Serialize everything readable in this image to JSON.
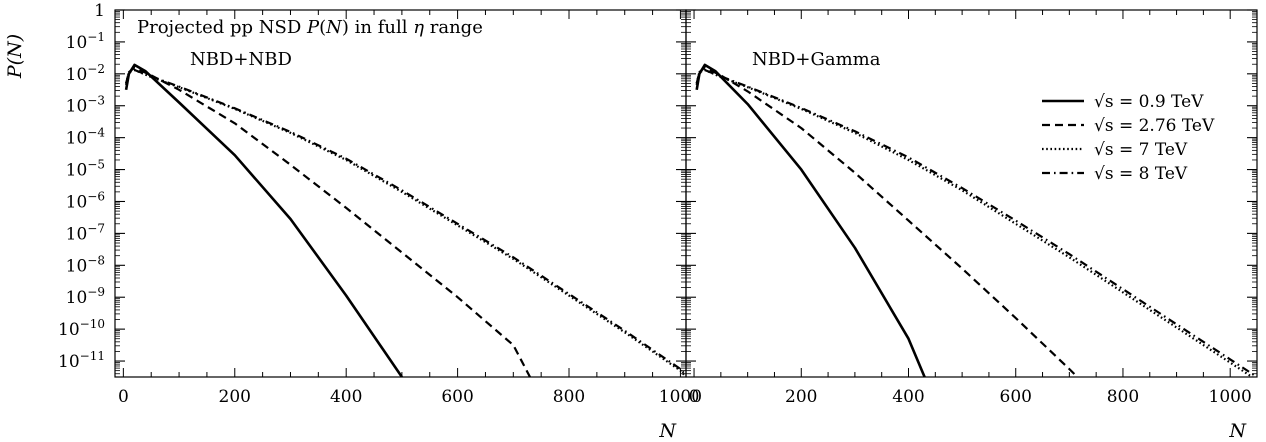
{
  "chart_data": [
    {
      "type": "line",
      "panel": "left",
      "title": "",
      "annotations": [
        "Projected pp NSD P(N) in full η range",
        "NBD+NBD"
      ],
      "xlabel": "N",
      "ylabel": "P(N)",
      "xlim": [
        -15,
        1010
      ],
      "ylim_log10": [
        -11.5,
        0
      ],
      "yscale": "log",
      "x_ticks": [
        "0",
        "200",
        "400",
        "600",
        "800",
        "1000"
      ],
      "y_ticks": [
        "1",
        "10^-1",
        "10^-2",
        "10^-3",
        "10^-4",
        "10^-5",
        "10^-6",
        "10^-7",
        "10^-8",
        "10^-9",
        "10^-10",
        "10^-11"
      ],
      "legend": "none",
      "series": [
        {
          "legend_label": "√s = 0.9 TeV",
          "style": "solid",
          "points": [
            [
              5,
              -2.5
            ],
            [
              10,
              -2.0
            ],
            [
              20,
              -1.72
            ],
            [
              40,
              -1.92
            ],
            [
              100,
              -2.9
            ],
            [
              200,
              -4.55
            ],
            [
              300,
              -6.55
            ],
            [
              400,
              -8.95
            ],
            [
              500,
              -11.5
            ]
          ]
        },
        {
          "legend_label": "√s = 2.76 TeV",
          "style": "dashed",
          "points": [
            [
              5,
              -2.35
            ],
            [
              10,
              -1.95
            ],
            [
              20,
              -1.8
            ],
            [
              50,
              -2.05
            ],
            [
              100,
              -2.5
            ],
            [
              200,
              -3.55
            ],
            [
              300,
              -4.85
            ],
            [
              400,
              -6.2
            ],
            [
              500,
              -7.6
            ],
            [
              600,
              -9.0
            ],
            [
              700,
              -10.5
            ],
            [
              730,
              -11.5
            ]
          ]
        },
        {
          "legend_label": "√s = 7 TeV",
          "style": "dotted",
          "points": [
            [
              5,
              -2.3
            ],
            [
              10,
              -1.95
            ],
            [
              20,
              -1.88
            ],
            [
              50,
              -2.1
            ],
            [
              100,
              -2.42
            ],
            [
              200,
              -3.1
            ],
            [
              300,
              -3.85
            ],
            [
              400,
              -4.7
            ],
            [
              500,
              -5.7
            ],
            [
              600,
              -6.75
            ],
            [
              700,
              -7.8
            ],
            [
              800,
              -8.95
            ],
            [
              900,
              -10.1
            ],
            [
              1000,
              -11.3
            ],
            [
              1010,
              -11.5
            ]
          ]
        },
        {
          "legend_label": "√s = 8 TeV",
          "style": "dashdot",
          "points": [
            [
              5,
              -2.3
            ],
            [
              10,
              -1.95
            ],
            [
              20,
              -1.88
            ],
            [
              50,
              -2.08
            ],
            [
              100,
              -2.4
            ],
            [
              200,
              -3.08
            ],
            [
              300,
              -3.82
            ],
            [
              400,
              -4.66
            ],
            [
              500,
              -5.65
            ],
            [
              600,
              -6.7
            ],
            [
              700,
              -7.75
            ],
            [
              800,
              -8.9
            ],
            [
              900,
              -10.05
            ],
            [
              1000,
              -11.25
            ],
            [
              1010,
              -11.45
            ]
          ]
        }
      ]
    },
    {
      "type": "line",
      "panel": "right",
      "title": "",
      "annotations": [
        "NBD+Gamma"
      ],
      "xlabel": "N",
      "xlim": [
        -15,
        1050
      ],
      "ylim_log10": [
        -11.5,
        0
      ],
      "yscale": "log",
      "x_ticks": [
        "0",
        "200",
        "400",
        "600",
        "800",
        "1000"
      ],
      "legend": "right",
      "series": [
        {
          "legend_label": "√s = 0.9 TeV",
          "style": "solid",
          "points": [
            [
              5,
              -2.5
            ],
            [
              10,
              -2.0
            ],
            [
              20,
              -1.72
            ],
            [
              40,
              -1.92
            ],
            [
              100,
              -2.95
            ],
            [
              200,
              -5.0
            ],
            [
              300,
              -7.45
            ],
            [
              400,
              -10.3
            ],
            [
              430,
              -11.5
            ]
          ]
        },
        {
          "legend_label": "√s = 2.76 TeV",
          "style": "dashed",
          "points": [
            [
              5,
              -2.35
            ],
            [
              10,
              -1.95
            ],
            [
              20,
              -1.8
            ],
            [
              50,
              -2.05
            ],
            [
              100,
              -2.55
            ],
            [
              200,
              -3.7
            ],
            [
              300,
              -5.1
            ],
            [
              400,
              -6.6
            ],
            [
              500,
              -8.1
            ],
            [
              600,
              -9.65
            ],
            [
              700,
              -11.25
            ],
            [
              715,
              -11.5
            ]
          ]
        },
        {
          "legend_label": "√s = 7 TeV",
          "style": "dotted",
          "points": [
            [
              5,
              -2.3
            ],
            [
              10,
              -1.95
            ],
            [
              20,
              -1.88
            ],
            [
              50,
              -2.1
            ],
            [
              100,
              -2.42
            ],
            [
              200,
              -3.1
            ],
            [
              300,
              -3.85
            ],
            [
              400,
              -4.7
            ],
            [
              500,
              -5.65
            ],
            [
              600,
              -6.7
            ],
            [
              700,
              -7.75
            ],
            [
              800,
              -8.85
            ],
            [
              900,
              -9.95
            ],
            [
              1000,
              -11.05
            ],
            [
              1050,
              -11.6
            ]
          ]
        },
        {
          "legend_label": "√s = 8 TeV",
          "style": "dashdot",
          "points": [
            [
              5,
              -2.3
            ],
            [
              10,
              -1.95
            ],
            [
              20,
              -1.88
            ],
            [
              50,
              -2.08
            ],
            [
              100,
              -2.4
            ],
            [
              200,
              -3.07
            ],
            [
              300,
              -3.8
            ],
            [
              400,
              -4.62
            ],
            [
              500,
              -5.58
            ],
            [
              600,
              -6.6
            ],
            [
              700,
              -7.65
            ],
            [
              800,
              -8.75
            ],
            [
              900,
              -9.85
            ],
            [
              1000,
              -10.95
            ],
            [
              1050,
              -11.5
            ]
          ]
        }
      ]
    }
  ],
  "colors": {
    "line": "#000000",
    "background": "#ffffff"
  }
}
